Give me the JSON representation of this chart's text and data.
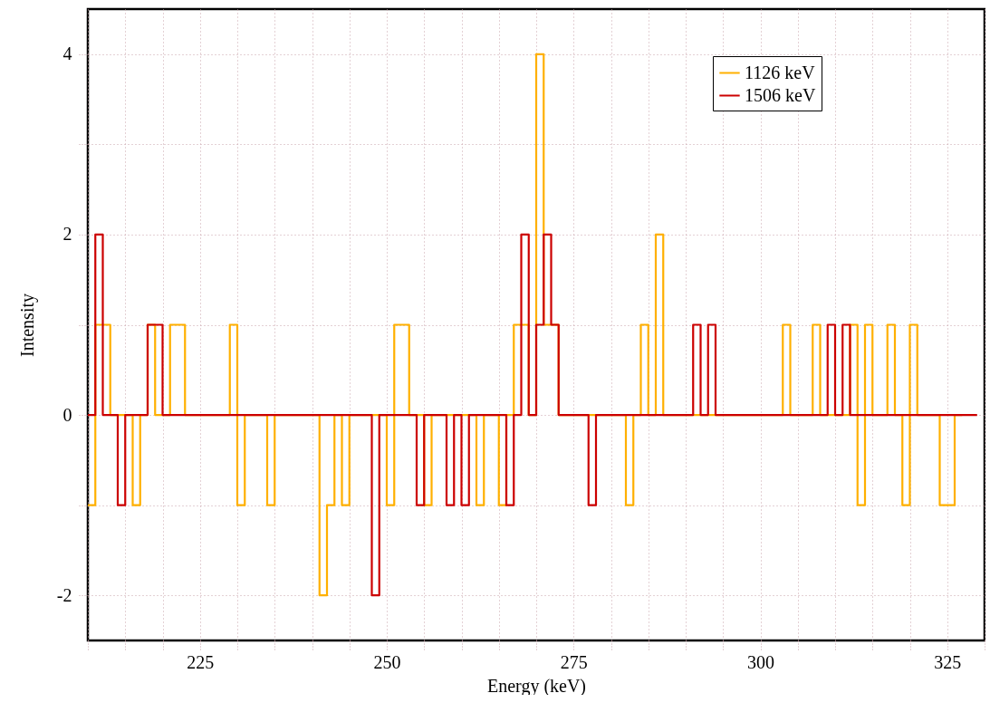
{
  "chart_data": {
    "type": "step",
    "xlabel": "Energy (keV)",
    "ylabel": "Intensity",
    "x": [
      210,
      211,
      212,
      213,
      214,
      215,
      216,
      217,
      218,
      219,
      220,
      221,
      222,
      223,
      224,
      225,
      226,
      227,
      228,
      229,
      230,
      231,
      232,
      233,
      234,
      235,
      236,
      237,
      238,
      239,
      240,
      241,
      242,
      243,
      244,
      245,
      246,
      247,
      248,
      249,
      250,
      251,
      252,
      253,
      254,
      255,
      256,
      257,
      258,
      259,
      260,
      261,
      262,
      263,
      264,
      265,
      266,
      267,
      268,
      269,
      270,
      271,
      272,
      273,
      274,
      275,
      276,
      277,
      278,
      279,
      280,
      281,
      282,
      283,
      284,
      285,
      286,
      287,
      288,
      289,
      290,
      291,
      292,
      293,
      294,
      295,
      296,
      297,
      298,
      299,
      300,
      301,
      302,
      303,
      304,
      305,
      306,
      307,
      308,
      309,
      310,
      311,
      312,
      313,
      314,
      315,
      316,
      317,
      318,
      319,
      320,
      321,
      322,
      323,
      324,
      325,
      326,
      327,
      328,
      329
    ],
    "series": [
      {
        "name": "1126 keV",
        "color": "#ffb000",
        "values": [
          -1,
          1,
          1,
          0,
          0,
          0,
          -1,
          0,
          1,
          0,
          0,
          1,
          1,
          0,
          0,
          0,
          0,
          0,
          0,
          1,
          -1,
          0,
          0,
          0,
          -1,
          0,
          0,
          0,
          0,
          0,
          0,
          -2,
          -1,
          0,
          -1,
          0,
          0,
          0,
          0,
          0,
          -1,
          1,
          1,
          0,
          0,
          -1,
          0,
          0,
          0,
          0,
          0,
          0,
          -1,
          0,
          0,
          -1,
          0,
          1,
          1,
          0,
          4,
          1,
          1,
          0,
          0,
          0,
          0,
          0,
          0,
          0,
          0,
          0,
          -1,
          0,
          1,
          0,
          2,
          0,
          0,
          0,
          0,
          0,
          0,
          0,
          0,
          0,
          0,
          0,
          0,
          0,
          0,
          0,
          0,
          1,
          0,
          0,
          0,
          1,
          0,
          0,
          0,
          0,
          1,
          -1,
          1,
          0,
          0,
          1,
          0,
          -1,
          1,
          0,
          0,
          0,
          -1,
          -1,
          0,
          0,
          null,
          null
        ]
      },
      {
        "name": "1506 keV",
        "color": "#cc0000",
        "values": [
          0,
          2,
          0,
          0,
          -1,
          0,
          0,
          0,
          1,
          1,
          0,
          0,
          0,
          0,
          0,
          0,
          0,
          0,
          0,
          0,
          0,
          0,
          0,
          0,
          0,
          0,
          0,
          0,
          0,
          0,
          0,
          0,
          0,
          0,
          0,
          0,
          0,
          0,
          -2,
          0,
          0,
          0,
          0,
          0,
          -1,
          0,
          0,
          0,
          -1,
          0,
          -1,
          0,
          0,
          0,
          0,
          0,
          -1,
          0,
          2,
          0,
          1,
          2,
          1,
          0,
          0,
          0,
          0,
          -1,
          0,
          0,
          0,
          0,
          0,
          0,
          0,
          0,
          0,
          0,
          0,
          0,
          0,
          1,
          0,
          1,
          0,
          0,
          0,
          0,
          0,
          0,
          0,
          0,
          0,
          0,
          0,
          0,
          0,
          0,
          0,
          1,
          0,
          1,
          0,
          0,
          0,
          0,
          0,
          0,
          0,
          0,
          0,
          0,
          0,
          0,
          0,
          0,
          0,
          0,
          0,
          0
        ]
      }
    ],
    "xlim": [
      210,
      330
    ],
    "xticks": [
      {
        "value": 210,
        "label": null
      },
      {
        "value": 215,
        "label": null
      },
      {
        "value": 220,
        "label": null
      },
      225,
      {
        "value": 230,
        "label": null
      },
      {
        "value": 235,
        "label": null
      },
      {
        "value": 240,
        "label": null
      },
      {
        "value": 245,
        "label": null
      },
      250,
      {
        "value": 255,
        "label": null
      },
      {
        "value": 260,
        "label": null
      },
      {
        "value": 265,
        "label": null
      },
      {
        "value": 270,
        "label": null
      },
      275,
      {
        "value": 280,
        "label": null
      },
      {
        "value": 285,
        "label": null
      },
      {
        "value": 290,
        "label": null
      },
      {
        "value": 295,
        "label": null
      },
      300,
      {
        "value": 305,
        "label": null
      },
      {
        "value": 310,
        "label": null
      },
      {
        "value": 315,
        "label": null
      },
      {
        "value": 320,
        "label": null
      },
      325,
      {
        "value": 330,
        "label": null
      }
    ],
    "ylim": [
      -2.5,
      4.5
    ],
    "yticks": [
      -2,
      {
        "value": -1,
        "label": null
      },
      0,
      {
        "value": 1,
        "label": null
      },
      2,
      {
        "value": 3,
        "label": null
      },
      4
    ],
    "grid": true,
    "legend": "top right"
  }
}
